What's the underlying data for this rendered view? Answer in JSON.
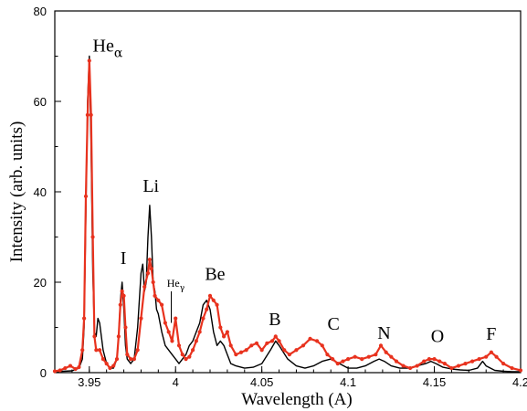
{
  "chart_data": {
    "type": "line",
    "title": "",
    "xlabel": "Wavelength (A)",
    "ylabel": "Intensity (arb. units)",
    "xlim": [
      3.93,
      4.2
    ],
    "ylim": [
      0,
      80
    ],
    "x_ticks": [
      3.95,
      4.0,
      4.05,
      4.1,
      4.15,
      4.2
    ],
    "x_tick_labels": [
      "3.95",
      "4",
      "4.05",
      "4.1",
      "4.15",
      "4.2"
    ],
    "y_ticks": [
      0,
      20,
      40,
      60,
      80
    ],
    "y_tick_labels": [
      "0",
      "20",
      "40",
      "60",
      "80"
    ],
    "grid": false,
    "colors": {
      "black_series": "#000000",
      "red_series": "#e8321e"
    },
    "annotations": [
      {
        "text": "He",
        "sub": "α",
        "x": 3.952,
        "y": 71
      },
      {
        "text": "Li",
        "x": 3.981,
        "y": 40
      },
      {
        "text": "I",
        "x": 3.968,
        "y": 24
      },
      {
        "text": "He",
        "sub": "γ",
        "x": 3.995,
        "y": 19,
        "small": true
      },
      {
        "text": "Be",
        "x": 4.017,
        "y": 20.5
      },
      {
        "text": "B",
        "x": 4.054,
        "y": 10.5
      },
      {
        "text": "C",
        "x": 4.088,
        "y": 9.5
      },
      {
        "text": "N",
        "x": 4.117,
        "y": 7.5
      },
      {
        "text": "O",
        "x": 4.148,
        "y": 6.8
      },
      {
        "text": "F",
        "x": 4.18,
        "y": 7.3
      }
    ],
    "series": [
      {
        "color": "#000000",
        "markers": false,
        "x": [
          3.93,
          3.935,
          3.94,
          3.944,
          3.946,
          3.947,
          3.948,
          3.949,
          3.95,
          3.951,
          3.952,
          3.953,
          3.954,
          3.955,
          3.956,
          3.958,
          3.96,
          3.962,
          3.964,
          3.966,
          3.967,
          3.968,
          3.969,
          3.97,
          3.971,
          3.972,
          3.974,
          3.976,
          3.978,
          3.98,
          3.981,
          3.982,
          3.983,
          3.984,
          3.985,
          3.986,
          3.987,
          3.988,
          3.989,
          3.99,
          3.992,
          3.994,
          3.996,
          3.998,
          4.0,
          4.002,
          4.004,
          4.006,
          4.008,
          4.01,
          4.012,
          4.014,
          4.016,
          4.018,
          4.02,
          4.022,
          4.024,
          4.026,
          4.028,
          4.03,
          4.032,
          4.035,
          4.04,
          4.045,
          4.05,
          4.055,
          4.058,
          4.06,
          4.065,
          4.07,
          4.075,
          4.08,
          4.085,
          4.09,
          4.095,
          4.1,
          4.105,
          4.11,
          4.115,
          4.118,
          4.121,
          4.125,
          4.13,
          4.135,
          4.14,
          4.145,
          4.148,
          4.151,
          4.155,
          4.16,
          4.165,
          4.17,
          4.175,
          4.178,
          4.18,
          4.185,
          4.19,
          4.195,
          4.2
        ],
        "y": [
          0.2,
          0.3,
          0.4,
          1.0,
          3.0,
          10.0,
          35.0,
          60.0,
          70.0,
          50.0,
          22.0,
          9.0,
          8.0,
          12.0,
          11.0,
          5.0,
          2.0,
          1.0,
          1.0,
          3.0,
          8.0,
          16.0,
          20.0,
          14.0,
          6.0,
          3.0,
          2.0,
          3.0,
          10.0,
          22.0,
          24.0,
          18.0,
          20.0,
          30.0,
          37.0,
          30.0,
          20.0,
          18.0,
          14.0,
          13.0,
          9.0,
          6.0,
          5.0,
          4.0,
          3.0,
          2.0,
          3.0,
          4.0,
          6.0,
          7.0,
          9.0,
          11.0,
          15.0,
          16.0,
          14.0,
          9.0,
          6.0,
          7.0,
          6.0,
          4.0,
          2.0,
          1.5,
          1.0,
          1.2,
          2.0,
          5.0,
          7.0,
          6.0,
          3.0,
          1.5,
          1.0,
          1.5,
          2.5,
          3.0,
          2.0,
          1.0,
          1.0,
          1.5,
          2.5,
          3.0,
          2.5,
          1.5,
          1.0,
          1.0,
          1.5,
          2.0,
          2.5,
          2.0,
          1.2,
          0.8,
          0.6,
          0.5,
          1.0,
          2.5,
          1.5,
          0.5,
          0.3,
          0.2,
          0.2
        ]
      },
      {
        "color": "#e8321e",
        "markers": true,
        "x": [
          3.93,
          3.933,
          3.936,
          3.939,
          3.942,
          3.944,
          3.946,
          3.947,
          3.948,
          3.949,
          3.95,
          3.951,
          3.952,
          3.953,
          3.954,
          3.956,
          3.958,
          3.96,
          3.962,
          3.964,
          3.966,
          3.967,
          3.968,
          3.969,
          3.97,
          3.971,
          3.972,
          3.974,
          3.976,
          3.978,
          3.98,
          3.982,
          3.984,
          3.985,
          3.986,
          3.987,
          3.988,
          3.99,
          3.992,
          3.994,
          3.996,
          3.998,
          4.0,
          4.002,
          4.004,
          4.006,
          4.008,
          4.01,
          4.012,
          4.014,
          4.016,
          4.018,
          4.02,
          4.022,
          4.024,
          4.026,
          4.028,
          4.03,
          4.032,
          4.035,
          4.038,
          4.041,
          4.044,
          4.047,
          4.05,
          4.053,
          4.056,
          4.058,
          4.06,
          4.063,
          4.066,
          4.07,
          4.074,
          4.078,
          4.082,
          4.085,
          4.088,
          4.091,
          4.094,
          4.097,
          4.1,
          4.104,
          4.108,
          4.112,
          4.116,
          4.119,
          4.122,
          4.125,
          4.128,
          4.132,
          4.136,
          4.14,
          4.144,
          4.147,
          4.15,
          4.153,
          4.156,
          4.16,
          4.164,
          4.168,
          4.172,
          4.176,
          4.18,
          4.183,
          4.186,
          4.19,
          4.195,
          4.2
        ],
        "y": [
          0.3,
          0.5,
          1.0,
          1.5,
          0.8,
          1.2,
          5.0,
          12.0,
          39.0,
          57.0,
          69.0,
          57.0,
          30.0,
          8.0,
          5.0,
          5.0,
          3.0,
          2.0,
          1.0,
          1.5,
          3.0,
          8.0,
          15.0,
          18.0,
          17.0,
          10.0,
          4.0,
          3.0,
          3.0,
          5.0,
          12.0,
          19.0,
          22.0,
          25.0,
          23.0,
          20.0,
          17.0,
          16.0,
          15.0,
          11.0,
          9.0,
          7.0,
          12.0,
          6.0,
          4.0,
          3.0,
          3.5,
          5.0,
          7.0,
          9.0,
          12.0,
          14.0,
          17.0,
          16.0,
          15.0,
          10.0,
          8.0,
          9.0,
          6.0,
          4.0,
          4.5,
          5.0,
          6.0,
          6.5,
          5.0,
          6.5,
          7.0,
          8.0,
          7.0,
          5.0,
          4.0,
          5.0,
          6.0,
          7.5,
          7.0,
          6.0,
          4.0,
          3.0,
          2.0,
          2.5,
          3.0,
          3.5,
          3.0,
          3.5,
          4.0,
          6.0,
          4.5,
          3.5,
          2.5,
          1.5,
          1.0,
          1.5,
          2.5,
          3.0,
          3.0,
          2.5,
          2.0,
          1.0,
          1.5,
          2.0,
          2.5,
          3.0,
          3.5,
          4.5,
          3.5,
          2.0,
          1.0,
          0.5
        ]
      }
    ]
  }
}
